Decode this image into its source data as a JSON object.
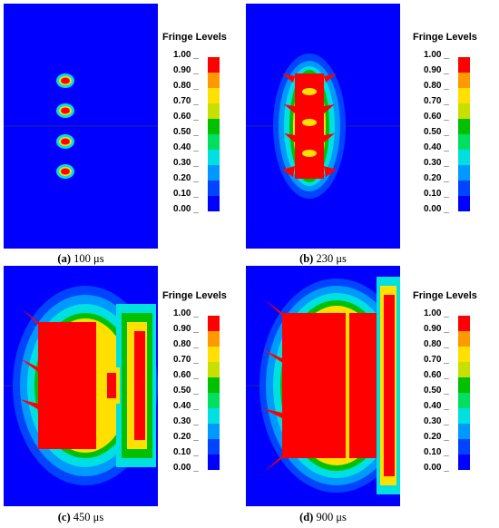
{
  "colors": {
    "background": "#0000ff",
    "bands": [
      "#0000ff",
      "#0044ff",
      "#0099ff",
      "#00e0e0",
      "#00e060",
      "#00c000",
      "#c8e000",
      "#ffe000",
      "#ff9900",
      "#ff0000"
    ]
  },
  "panels": [
    {
      "id": "a",
      "letter": "(a)",
      "time": "100 μs",
      "legend_title": "Fringe Levels"
    },
    {
      "id": "b",
      "letter": "(b)",
      "time": "230 μs",
      "legend_title": "Fringe Levels"
    },
    {
      "id": "c",
      "letter": "(c)",
      "time": "450 μs",
      "legend_title": "Fringe Levels"
    },
    {
      "id": "d",
      "letter": "(d)",
      "time": "900 μs",
      "legend_title": "Fringe Levels"
    }
  ],
  "fringe_levels": [
    "1.00",
    "0.90",
    "0.80",
    "0.70",
    "0.60",
    "0.50",
    "0.40",
    "0.30",
    "0.20",
    "0.10",
    "0.00"
  ]
}
